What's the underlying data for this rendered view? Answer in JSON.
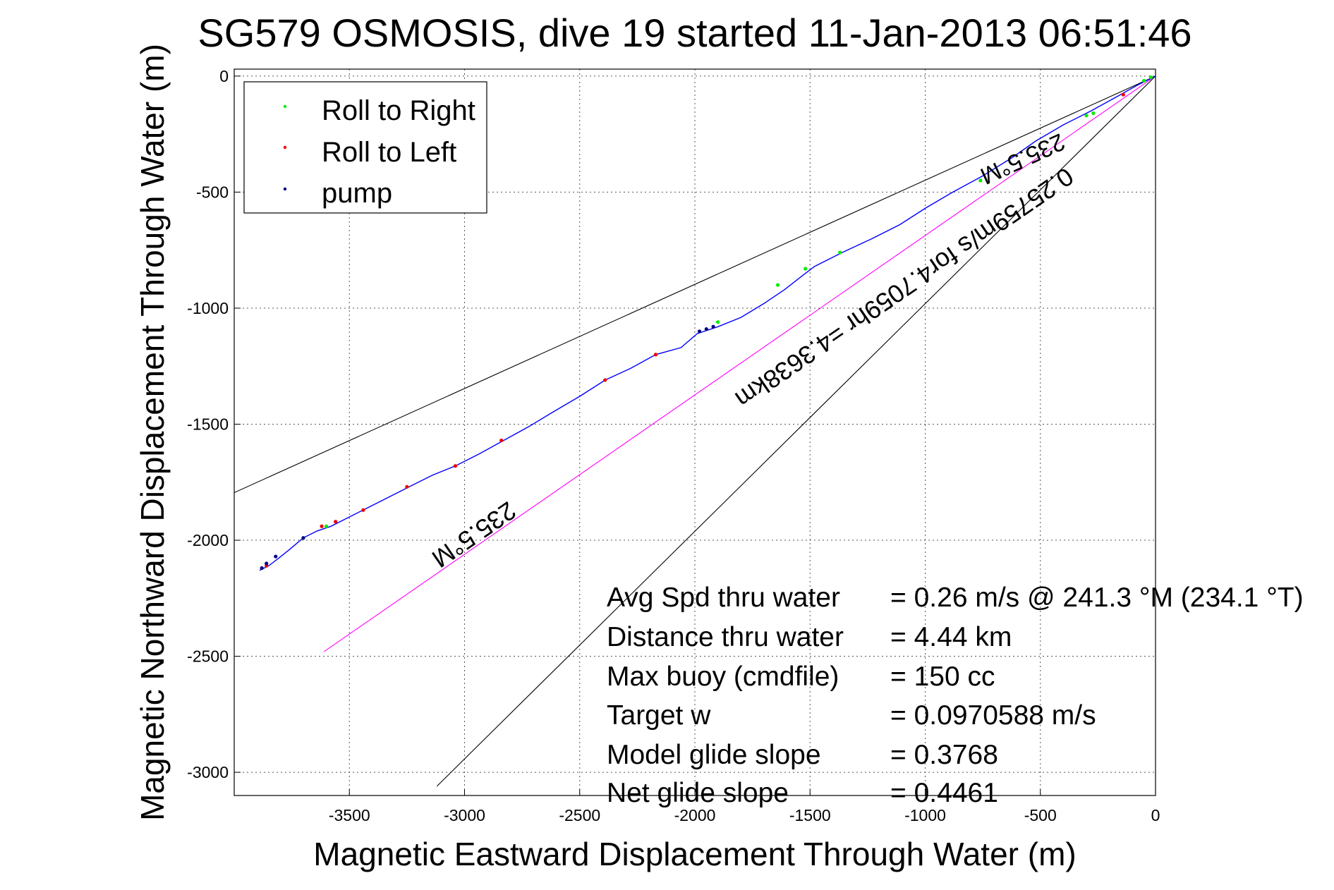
{
  "chart_data": {
    "type": "line",
    "title": "SG579 OSMOSIS, dive 19 started 11-Jan-2013 06:51:46",
    "xlabel": "Magnetic Eastward Displacement Through Water (m)",
    "ylabel": "Magnetic Northward Displacement Through Water (m)",
    "xlim": [
      -4000,
      0
    ],
    "ylim": [
      -3100,
      30
    ],
    "xticks": [
      -3500,
      -3000,
      -2500,
      -2000,
      -1500,
      -1000,
      -500,
      0
    ],
    "yticks": [
      0,
      -500,
      -1000,
      -1500,
      -2000,
      -2500,
      -3000
    ],
    "grid": true,
    "legend": {
      "position": "top-left",
      "entries": [
        {
          "label": "Roll to Right",
          "color": "#00ee00"
        },
        {
          "label": "Roll to Left",
          "color": "#ee0000"
        },
        {
          "label": "pump",
          "color": "#000080"
        }
      ]
    },
    "track": {
      "name": "displacement",
      "color": "#0000ff",
      "x": [
        0,
        -80,
        -170,
        -280,
        -400,
        -520,
        -620,
        -750,
        -880,
        -1000,
        -1110,
        -1230,
        -1360,
        -1480,
        -1520,
        -1610,
        -1700,
        -1800,
        -1900,
        -1990,
        -2060,
        -2170,
        -2280,
        -2390,
        -2500,
        -2620,
        -2720,
        -2830,
        -2940,
        -3040,
        -3140,
        -3240,
        -3340,
        -3440,
        -3520,
        -3580,
        -3640,
        -3700,
        -3760,
        -3810,
        -3850,
        -3890
      ],
      "y": [
        0,
        -40,
        -90,
        -150,
        -210,
        -280,
        -350,
        -430,
        -500,
        -570,
        -640,
        -700,
        -760,
        -820,
        -850,
        -920,
        -980,
        -1040,
        -1080,
        -1110,
        -1170,
        -1200,
        -1260,
        -1310,
        -1380,
        -1450,
        -1510,
        -1570,
        -1630,
        -1680,
        -1720,
        -1770,
        -1820,
        -1870,
        -1910,
        -1940,
        -1960,
        -1990,
        -2040,
        -2080,
        -2110,
        -2130
      ]
    },
    "roll_right": {
      "x": [
        -20,
        -50,
        -270,
        -300,
        -760,
        -1370,
        -1520,
        -1640,
        -1900,
        -3600
      ],
      "y": [
        -5,
        -20,
        -160,
        -170,
        -450,
        -760,
        -830,
        -900,
        -1060,
        -1940
      ]
    },
    "roll_left": {
      "x": [
        -140,
        -2170,
        -2390,
        -2840,
        -3040,
        -3250,
        -3440,
        -3560,
        -3620,
        -3860
      ],
      "y": [
        -80,
        -1200,
        -1310,
        -1570,
        -1680,
        -1770,
        -1870,
        -1920,
        -1940,
        -2110
      ]
    },
    "pump": {
      "x": [
        -1980,
        -1950,
        -1920,
        -3700,
        -3820,
        -3860,
        -3880
      ],
      "y": [
        -1100,
        -1090,
        -1080,
        -1990,
        -2070,
        -2100,
        -2120
      ]
    },
    "heading_lines": [
      {
        "color": "#000000",
        "x": [
          0,
          -4000
        ],
        "y": [
          0,
          -1795
        ]
      },
      {
        "color": "#000000",
        "x": [
          0,
          -3120
        ],
        "y": [
          0,
          -3060
        ]
      },
      {
        "color": "#ff00ff",
        "x": [
          0,
          -3610
        ],
        "y": [
          0,
          -2480
        ]
      }
    ],
    "annotations": {
      "heading_upper": "235.5°M",
      "heading_lower": "235.5°M",
      "speed_line": "0.25759m/s for4.7059hr =4.3638km"
    },
    "stats": [
      {
        "label": "Avg Spd thru water",
        "value": "=  0.26 m/s @ 241.3 °M (234.1 °T)"
      },
      {
        "label": "Distance thru water",
        "value": "=  4.44 km"
      },
      {
        "label": "Max buoy (cmdfile)",
        "value": "= 150 cc"
      },
      {
        "label": "Target w",
        "value": "= 0.0970588 m/s"
      },
      {
        "label": "Model glide slope",
        "value": "= 0.3768"
      },
      {
        "label": "Net glide slope",
        "value": "= 0.4461"
      }
    ]
  }
}
